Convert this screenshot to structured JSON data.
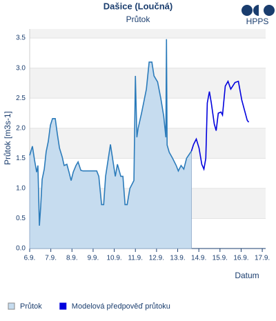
{
  "logo": "HPPS",
  "chart_data": {
    "type": "line",
    "title": "Dašice (Loučná)",
    "subtitle": "Průtok",
    "x_label": "Datum",
    "y_label": "Průtok [m3s-1]",
    "xlim": [
      6,
      17.16
    ],
    "ylim": [
      0,
      3.65
    ],
    "grid": true,
    "legend": "bottom-left",
    "xticks": [
      {
        "value": 6,
        "label": "6.9."
      },
      {
        "value": 7,
        "label": "7.9."
      },
      {
        "value": 8,
        "label": "8.9."
      },
      {
        "value": 9,
        "label": "9.9."
      },
      {
        "value": 10,
        "label": "10.9."
      },
      {
        "value": 11,
        "label": "11.9."
      },
      {
        "value": 12,
        "label": "12.9."
      },
      {
        "value": 13,
        "label": "13.9."
      },
      {
        "value": 14,
        "label": "14.9."
      },
      {
        "value": 15,
        "label": "15.9."
      },
      {
        "value": 16,
        "label": "16.9."
      },
      {
        "value": 17,
        "label": "17.9."
      }
    ],
    "yticks": [
      {
        "value": 0,
        "label": "0.0"
      },
      0.5,
      {
        "value": 1,
        "label": "1.0"
      },
      1.5,
      {
        "value": 2,
        "label": "2.0"
      },
      2.5,
      {
        "value": 3,
        "label": "3.0"
      },
      3.5
    ],
    "series": [
      {
        "name": "Průtok",
        "color": "#2b7bba",
        "fill": "#c6dcef",
        "style": "area",
        "x": [
          6.0,
          6.13,
          6.23,
          6.33,
          6.39,
          6.46,
          6.52,
          6.59,
          6.69,
          6.78,
          6.88,
          6.98,
          7.08,
          7.21,
          7.31,
          7.41,
          7.54,
          7.63,
          7.76,
          7.86,
          7.96,
          8.06,
          8.19,
          8.29,
          8.42,
          8.52,
          9.17,
          9.27,
          9.4,
          9.5,
          9.59,
          9.82,
          10.05,
          10.15,
          10.31,
          10.41,
          10.51,
          10.61,
          10.74,
          10.93,
          11.0,
          11.07,
          11.13,
          11.29,
          11.52,
          11.65,
          11.78,
          11.88,
          12.05,
          12.21,
          12.34,
          12.44,
          12.47,
          12.5,
          12.6,
          12.76,
          12.93,
          13.03,
          13.16,
          13.29,
          13.42,
          13.65
        ],
        "values": [
          1.55,
          1.7,
          1.47,
          1.27,
          1.38,
          0.38,
          0.69,
          1.15,
          1.32,
          1.61,
          1.78,
          2.05,
          2.16,
          2.16,
          1.9,
          1.67,
          1.52,
          1.38,
          1.4,
          1.27,
          1.13,
          1.27,
          1.38,
          1.44,
          1.3,
          1.29,
          1.29,
          1.2,
          0.73,
          0.73,
          1.2,
          1.73,
          1.2,
          1.4,
          1.2,
          1.2,
          0.73,
          0.73,
          1.0,
          1.13,
          2.87,
          1.85,
          2.0,
          2.25,
          2.65,
          3.1,
          3.1,
          2.87,
          2.77,
          2.48,
          2.2,
          1.85,
          3.48,
          1.72,
          1.6,
          1.5,
          1.38,
          1.29,
          1.38,
          1.32,
          1.5,
          1.62
        ]
      },
      {
        "name": "Modelová předpověď průtoku",
        "color": "#0000dd",
        "style": "line",
        "x": [
          13.65,
          13.75,
          13.88,
          14.01,
          14.14,
          14.24,
          14.33,
          14.4,
          14.5,
          14.59,
          14.73,
          14.82,
          14.92,
          15.05,
          15.12,
          15.25,
          15.38,
          15.51,
          15.71,
          15.87,
          16.03,
          16.16,
          16.29,
          16.36
        ],
        "values": [
          1.62,
          1.73,
          1.82,
          1.67,
          1.4,
          1.32,
          1.5,
          2.42,
          2.61,
          2.42,
          2.07,
          1.96,
          2.25,
          2.27,
          2.22,
          2.7,
          2.78,
          2.65,
          2.76,
          2.78,
          2.47,
          2.3,
          2.13,
          2.1
        ]
      }
    ]
  }
}
